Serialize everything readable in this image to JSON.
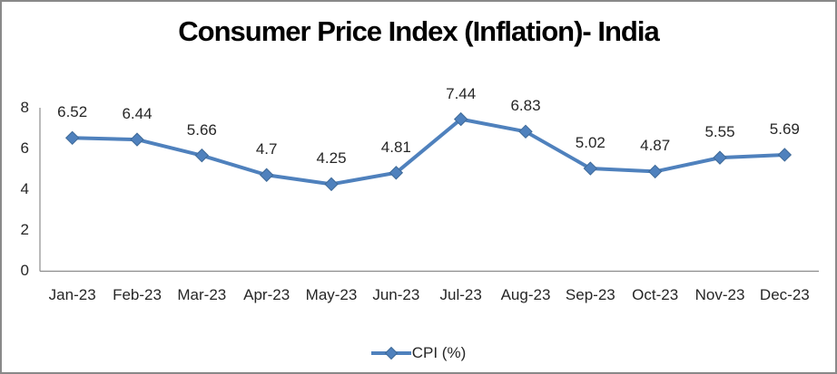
{
  "window": {
    "background": "#ffffff",
    "frame_border_color": "#898989"
  },
  "chart_data": {
    "type": "line",
    "title": "Consumer Price Index (Inflation)- India",
    "categories": [
      "Jan-23",
      "Feb-23",
      "Mar-23",
      "Apr-23",
      "May-23",
      "Jun-23",
      "Jul-23",
      "Aug-23",
      "Sep-23",
      "Oct-23",
      "Nov-23",
      "Dec-23"
    ],
    "series": [
      {
        "name": "CPI (%)",
        "values": [
          6.52,
          6.44,
          5.66,
          4.7,
          4.25,
          4.81,
          7.44,
          6.83,
          5.02,
          4.87,
          5.55,
          5.69
        ]
      }
    ],
    "data_labels": [
      "6.52",
      "6.44",
      "5.66",
      "4.7",
      "4.25",
      "4.81",
      "7.44",
      "6.83",
      "5.02",
      "4.87",
      "5.55",
      "5.69"
    ],
    "y_ticks": [
      8,
      6,
      4,
      2,
      0
    ],
    "ylim": [
      0,
      8
    ],
    "xlabel": "",
    "ylabel": "",
    "grid": false,
    "legend_position": "bottom",
    "line_color": "#4F81BD",
    "marker": "diamond",
    "marker_outline_color": "#3E6997",
    "axis_color": "#8C8C8C",
    "label_color": "#262626",
    "title_color": "#000000"
  },
  "legend": {
    "label": "CPI (%)"
  }
}
